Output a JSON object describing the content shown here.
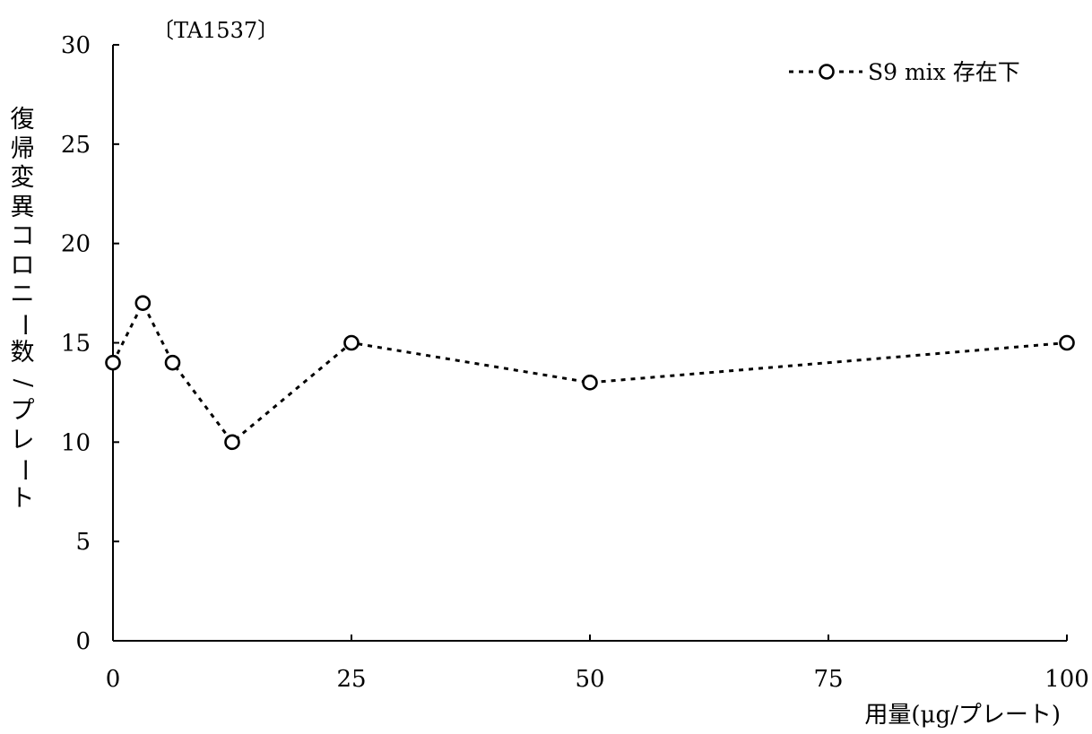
{
  "chart_data": {
    "type": "line",
    "panel_label": "〔TA1537〕",
    "xlabel": "用量(μg/プレート)",
    "ylabel": "復帰変異コロニー数/プレート",
    "ylabel_chars": [
      "復",
      "帰",
      "変",
      "異",
      "コ",
      "ロ",
      "ニ",
      "ー",
      "数",
      "/",
      "プ",
      "レ",
      "ー",
      "ト"
    ],
    "xlim": [
      0,
      100
    ],
    "ylim": [
      0,
      30
    ],
    "x_ticks": [
      0,
      25,
      50,
      75,
      100
    ],
    "y_ticks": [
      0,
      5,
      10,
      15,
      20,
      25,
      30
    ],
    "grid": false,
    "legend_position": "top-right",
    "series": [
      {
        "name": "S9 mix 存在下",
        "marker": "open-circle",
        "line_style": "dashed",
        "color": "#000000",
        "x": [
          0,
          3.13,
          6.25,
          12.5,
          25,
          50,
          100
        ],
        "y": [
          14,
          17,
          14,
          10,
          15,
          13,
          15
        ]
      }
    ]
  }
}
